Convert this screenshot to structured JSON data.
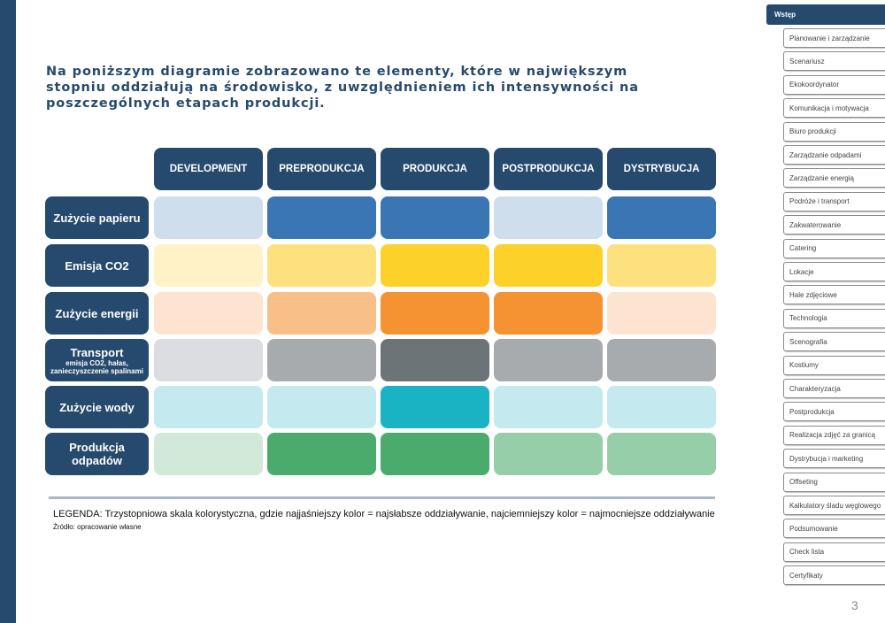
{
  "intro_text": "Na poniższym diagramie zobrazowano te elementy, które w największym stopniu oddziałują na środowisko, z uwzględnieniem ich intensywności na poszczególnych etapach produkcji.",
  "columns": [
    "DEVELOPMENT",
    "PREPRODUKCJA",
    "PRODUKCJA",
    "POSTPRODUKCJA",
    "DYSTRYBUCJA"
  ],
  "rows": [
    {
      "label": "Zużycie papieru",
      "sublabel": "",
      "colors": [
        "#cfdeed",
        "#3b76b4",
        "#3b76b4",
        "#cfdeed",
        "#3b76b4"
      ]
    },
    {
      "label": "Emisja CO2",
      "sublabel": "",
      "colors": [
        "#fff2c7",
        "#fde17e",
        "#fcd22a",
        "#fcd22a",
        "#fde17e"
      ]
    },
    {
      "label": "Zużycie energii",
      "sublabel": "",
      "colors": [
        "#fde4d0",
        "#f8c088",
        "#f59232",
        "#f59232",
        "#fde4d0"
      ]
    },
    {
      "label": "Transport",
      "sublabel": "emisja CO2, hałas, zanieczyszczenie spalinami",
      "colors": [
        "#dcdde0",
        "#a8abad",
        "#6d7477",
        "#a8abad",
        "#a8abad"
      ]
    },
    {
      "label": "Zużycie wody",
      "sublabel": "",
      "colors": [
        "#c4eaf0",
        "#c4eaf0",
        "#19b3c4",
        "#c4eaf0",
        "#c4eaf0"
      ]
    },
    {
      "label": "Produkcja odpadów",
      "sublabel": "",
      "colors": [
        "#d2e9da",
        "#4aab6c",
        "#4aab6c",
        "#97ceaa",
        "#97ceaa"
      ]
    }
  ],
  "legend": "LEGENDA: Trzystopniowa skala kolorystyczna, gdzie najjaśniejszy kolor = najsłabsze oddziaływanie, najciemniejszy kolor = najmocniejsze oddziaływanie",
  "source": "Źródło: opracowanie własne",
  "page_number": "3",
  "nav": {
    "active": "Wstęp",
    "items": [
      "Planowanie i zarządzanie",
      "Scenariusz",
      "Ekokoordynator",
      "Komunikacja i motywacja",
      "Biuro produkcji",
      "Zarządzanie odpadami",
      "Zarządzanie energią",
      "Podróże i transport",
      "Zakwaterowanie",
      "Catering",
      "Lokacje",
      "Hale zdjęciowe",
      "Technologia",
      "Scenografia",
      "Kostiumy",
      "Charakteryzacja",
      "Postprodukcja",
      "Realizacja zdjęć za granicą",
      "Dystrybucja i marketing",
      "Offseting",
      "Kalkulatory śladu węglowego",
      "Podsumowanie",
      "Check lista",
      "Certyfikaty"
    ]
  }
}
